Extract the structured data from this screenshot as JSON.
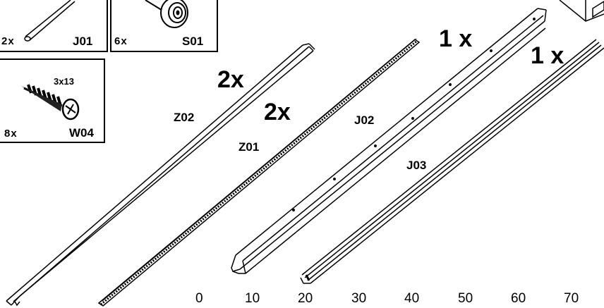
{
  "hardware_boxes": [
    {
      "id": "dowel",
      "qty": "2x",
      "code": "J01"
    },
    {
      "id": "wheel",
      "qty": "6x",
      "code": "S01"
    },
    {
      "id": "screw",
      "qty": "8x",
      "code": "W04",
      "size": "3x13"
    }
  ],
  "parts": [
    {
      "id": "Z02",
      "qty": "2x",
      "code": "Z02"
    },
    {
      "id": "Z01",
      "qty": "2x",
      "code": "Z01"
    },
    {
      "id": "J02",
      "qty": "1 x",
      "code": "J02"
    },
    {
      "id": "J03",
      "qty": "1 x",
      "code": "J03"
    }
  ],
  "scale": {
    "ticks": [
      "0",
      "10",
      "20",
      "30",
      "40",
      "50",
      "60",
      "70"
    ]
  },
  "colors": {
    "line": "#000000",
    "background": "#ffffff",
    "fill_dark": "#333333"
  }
}
